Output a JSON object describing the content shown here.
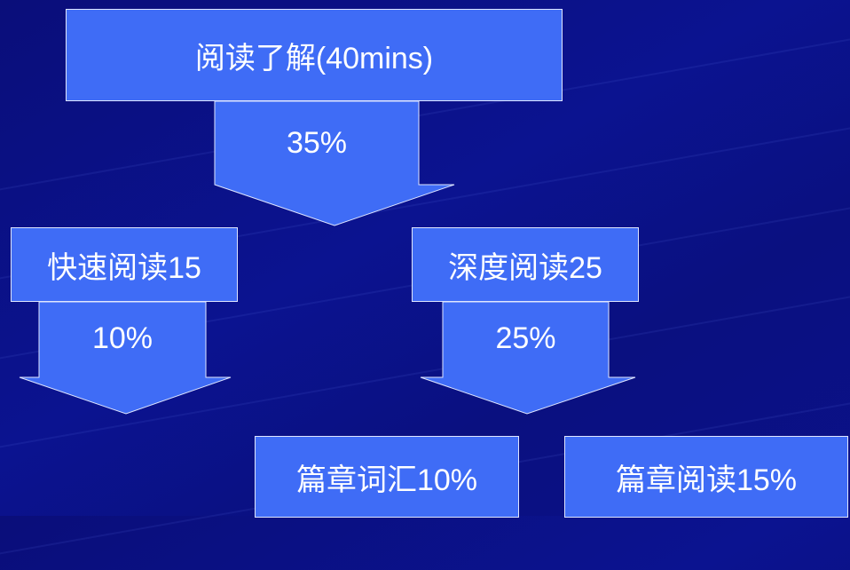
{
  "diagram": {
    "root": {
      "label": "阅读了解(40mins)",
      "percent": "35%"
    },
    "left": {
      "label": "快速阅读15",
      "percent": "10%"
    },
    "right": {
      "label": "深度阅读25",
      "percent": "25%"
    },
    "bottom_left": {
      "label": "篇章词汇10%"
    },
    "bottom_right": {
      "label": "篇章阅读15%"
    }
  },
  "colors": {
    "background": "#0b1390",
    "box_fill": "#3f6cf6",
    "box_border": "#dfe6ff",
    "text": "#ffffff"
  }
}
